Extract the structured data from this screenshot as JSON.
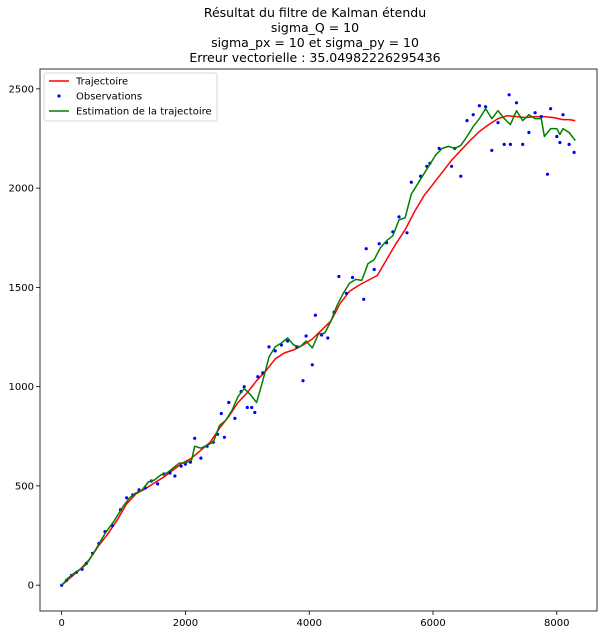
{
  "chart_data": {
    "type": "line",
    "title_lines": [
      "Résultat du filtre de Kalman étendu",
      "sigma_Q = 10",
      "sigma_px = 10 et sigma_py = 10",
      "Erreur vectorielle : 35.04982226295436"
    ],
    "xlabel": "",
    "ylabel": "",
    "xlim": [
      -350,
      8650
    ],
    "ylim": [
      -130,
      2600
    ],
    "x_ticks": [
      0,
      2000,
      4000,
      6000,
      8000
    ],
    "y_ticks": [
      0,
      500,
      1000,
      1500,
      2000,
      2500
    ],
    "grid": false,
    "legend_position": "top-left",
    "series": [
      {
        "name": "Trajectoire",
        "type": "line",
        "color": "#ff0000",
        "points": [
          [
            0,
            0
          ],
          [
            150,
            40
          ],
          [
            300,
            80
          ],
          [
            450,
            130
          ],
          [
            600,
            200
          ],
          [
            750,
            260
          ],
          [
            900,
            330
          ],
          [
            1050,
            410
          ],
          [
            1200,
            460
          ],
          [
            1350,
            485
          ],
          [
            1500,
            515
          ],
          [
            1650,
            545
          ],
          [
            1800,
            580
          ],
          [
            1950,
            615
          ],
          [
            2100,
            640
          ],
          [
            2250,
            680
          ],
          [
            2400,
            720
          ],
          [
            2550,
            790
          ],
          [
            2700,
            850
          ],
          [
            2850,
            920
          ],
          [
            3000,
            970
          ],
          [
            3150,
            1030
          ],
          [
            3300,
            1080
          ],
          [
            3450,
            1140
          ],
          [
            3600,
            1170
          ],
          [
            3750,
            1185
          ],
          [
            3900,
            1210
          ],
          [
            4050,
            1240
          ],
          [
            4200,
            1285
          ],
          [
            4350,
            1330
          ],
          [
            4500,
            1420
          ],
          [
            4650,
            1480
          ],
          [
            4800,
            1510
          ],
          [
            4950,
            1535
          ],
          [
            5100,
            1560
          ],
          [
            5250,
            1640
          ],
          [
            5400,
            1720
          ],
          [
            5550,
            1790
          ],
          [
            5700,
            1880
          ],
          [
            5850,
            1960
          ],
          [
            6000,
            2020
          ],
          [
            6150,
            2080
          ],
          [
            6300,
            2140
          ],
          [
            6450,
            2190
          ],
          [
            6600,
            2240
          ],
          [
            6750,
            2285
          ],
          [
            6900,
            2320
          ],
          [
            7050,
            2350
          ],
          [
            7200,
            2365
          ],
          [
            7350,
            2360
          ],
          [
            7500,
            2355
          ],
          [
            7650,
            2360
          ],
          [
            7800,
            2360
          ],
          [
            7950,
            2355
          ],
          [
            8100,
            2345
          ],
          [
            8200,
            2345
          ],
          [
            8300,
            2340
          ]
        ]
      },
      {
        "name": "Observations",
        "type": "scatter",
        "color": "#0000ff",
        "points": [
          [
            0,
            0
          ],
          [
            80,
            25
          ],
          [
            160,
            50
          ],
          [
            240,
            65
          ],
          [
            330,
            80
          ],
          [
            400,
            110
          ],
          [
            500,
            160
          ],
          [
            600,
            210
          ],
          [
            700,
            270
          ],
          [
            820,
            300
          ],
          [
            950,
            380
          ],
          [
            1050,
            440
          ],
          [
            1150,
            455
          ],
          [
            1250,
            480
          ],
          [
            1350,
            490
          ],
          [
            1450,
            525
          ],
          [
            1550,
            510
          ],
          [
            1650,
            560
          ],
          [
            1750,
            565
          ],
          [
            1830,
            550
          ],
          [
            1930,
            600
          ],
          [
            2000,
            610
          ],
          [
            2080,
            620
          ],
          [
            2150,
            740
          ],
          [
            2250,
            640
          ],
          [
            2350,
            700
          ],
          [
            2450,
            720
          ],
          [
            2520,
            760
          ],
          [
            2580,
            865
          ],
          [
            2630,
            745
          ],
          [
            2700,
            920
          ],
          [
            2800,
            840
          ],
          [
            2900,
            975
          ],
          [
            2950,
            1000
          ],
          [
            3000,
            895
          ],
          [
            3070,
            895
          ],
          [
            3120,
            870
          ],
          [
            3170,
            1050
          ],
          [
            3250,
            1070
          ],
          [
            3350,
            1200
          ],
          [
            3450,
            1180
          ],
          [
            3550,
            1210
          ],
          [
            3650,
            1230
          ],
          [
            3800,
            1200
          ],
          [
            3900,
            1030
          ],
          [
            3950,
            1255
          ],
          [
            4050,
            1110
          ],
          [
            4100,
            1360
          ],
          [
            4200,
            1260
          ],
          [
            4300,
            1245
          ],
          [
            4400,
            1375
          ],
          [
            4480,
            1555
          ],
          [
            4600,
            1470
          ],
          [
            4700,
            1550
          ],
          [
            4880,
            1440
          ],
          [
            4920,
            1695
          ],
          [
            5050,
            1590
          ],
          [
            5130,
            1720
          ],
          [
            5250,
            1725
          ],
          [
            5350,
            1780
          ],
          [
            5450,
            1855
          ],
          [
            5580,
            1775
          ],
          [
            5650,
            2030
          ],
          [
            5800,
            2060
          ],
          [
            5900,
            2110
          ],
          [
            5950,
            2125
          ],
          [
            6100,
            2200
          ],
          [
            6300,
            2110
          ],
          [
            6350,
            2200
          ],
          [
            6450,
            2060
          ],
          [
            6550,
            2340
          ],
          [
            6650,
            2370
          ],
          [
            6750,
            2415
          ],
          [
            6850,
            2410
          ],
          [
            6950,
            2190
          ],
          [
            7050,
            2330
          ],
          [
            7150,
            2220
          ],
          [
            7230,
            2470
          ],
          [
            7250,
            2220
          ],
          [
            7350,
            2430
          ],
          [
            7450,
            2220
          ],
          [
            7550,
            2280
          ],
          [
            7650,
            2380
          ],
          [
            7750,
            2360
          ],
          [
            7850,
            2070
          ],
          [
            7900,
            2400
          ],
          [
            8000,
            2260
          ],
          [
            8050,
            2230
          ],
          [
            8100,
            2370
          ],
          [
            8200,
            2220
          ],
          [
            8280,
            2180
          ]
        ]
      },
      {
        "name": "Estimation de la trajectoire",
        "type": "line",
        "color": "#008000",
        "points": [
          [
            0,
            0
          ],
          [
            100,
            35
          ],
          [
            200,
            60
          ],
          [
            300,
            80
          ],
          [
            400,
            105
          ],
          [
            550,
            180
          ],
          [
            700,
            260
          ],
          [
            850,
            325
          ],
          [
            1000,
            400
          ],
          [
            1100,
            440
          ],
          [
            1200,
            465
          ],
          [
            1300,
            480
          ],
          [
            1400,
            520
          ],
          [
            1500,
            530
          ],
          [
            1600,
            555
          ],
          [
            1700,
            565
          ],
          [
            1800,
            590
          ],
          [
            1900,
            615
          ],
          [
            2000,
            615
          ],
          [
            2100,
            630
          ],
          [
            2150,
            700
          ],
          [
            2250,
            690
          ],
          [
            2350,
            705
          ],
          [
            2450,
            720
          ],
          [
            2550,
            805
          ],
          [
            2650,
            830
          ],
          [
            2750,
            880
          ],
          [
            2850,
            950
          ],
          [
            2950,
            990
          ],
          [
            3050,
            960
          ],
          [
            3150,
            920
          ],
          [
            3250,
            1030
          ],
          [
            3350,
            1150
          ],
          [
            3450,
            1200
          ],
          [
            3550,
            1220
          ],
          [
            3650,
            1245
          ],
          [
            3750,
            1210
          ],
          [
            3850,
            1200
          ],
          [
            3950,
            1230
          ],
          [
            4050,
            1195
          ],
          [
            4150,
            1265
          ],
          [
            4250,
            1270
          ],
          [
            4350,
            1330
          ],
          [
            4450,
            1410
          ],
          [
            4550,
            1470
          ],
          [
            4650,
            1520
          ],
          [
            4750,
            1540
          ],
          [
            4850,
            1535
          ],
          [
            4950,
            1620
          ],
          [
            5050,
            1640
          ],
          [
            5150,
            1700
          ],
          [
            5250,
            1735
          ],
          [
            5350,
            1760
          ],
          [
            5450,
            1840
          ],
          [
            5550,
            1850
          ],
          [
            5650,
            1970
          ],
          [
            5750,
            2020
          ],
          [
            5850,
            2070
          ],
          [
            5950,
            2120
          ],
          [
            6050,
            2170
          ],
          [
            6150,
            2200
          ],
          [
            6250,
            2210
          ],
          [
            6350,
            2200
          ],
          [
            6450,
            2215
          ],
          [
            6550,
            2260
          ],
          [
            6650,
            2310
          ],
          [
            6750,
            2350
          ],
          [
            6850,
            2400
          ],
          [
            6950,
            2350
          ],
          [
            7050,
            2390
          ],
          [
            7150,
            2350
          ],
          [
            7250,
            2320
          ],
          [
            7350,
            2390
          ],
          [
            7450,
            2340
          ],
          [
            7550,
            2370
          ],
          [
            7650,
            2350
          ],
          [
            7750,
            2350
          ],
          [
            7800,
            2260
          ],
          [
            7900,
            2300
          ],
          [
            8000,
            2300
          ],
          [
            8050,
            2270
          ],
          [
            8100,
            2300
          ],
          [
            8200,
            2280
          ],
          [
            8300,
            2240
          ]
        ]
      }
    ]
  }
}
